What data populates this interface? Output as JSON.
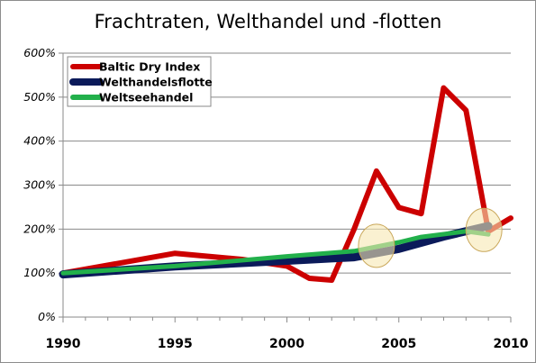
{
  "chart_data": {
    "type": "line",
    "title": "Frachtraten, Welthandel und -flotten",
    "xlabel": "",
    "ylabel": "",
    "xlim": [
      1990,
      2010
    ],
    "ylim": [
      0,
      600
    ],
    "x_ticks": [
      "1990",
      "1995",
      "2000",
      "2005",
      "2010"
    ],
    "x_tick_values": [
      1990,
      1995,
      2000,
      2005,
      2010
    ],
    "y_ticks": [
      "0%",
      "100%",
      "200%",
      "300%",
      "400%",
      "500%",
      "600%"
    ],
    "y_tick_values": [
      0,
      100,
      200,
      300,
      400,
      500,
      600
    ],
    "grid": "horizontal",
    "legend_position": "top-left",
    "series": [
      {
        "name": "Baltic Dry Index",
        "color": "#cc0000",
        "x": [
          1990,
          1995,
          1998,
          2000,
          2001,
          2002,
          2003,
          2004,
          2005,
          2006,
          2007,
          2008,
          2009,
          2010
        ],
        "values": [
          100,
          145,
          131,
          116,
          88,
          84,
          200,
          332,
          249,
          235,
          521,
          470,
          195,
          225
        ]
      },
      {
        "name": "Welthandelsflotte",
        "color": "#0b1a5a",
        "x": [
          1990,
          1995,
          2000,
          2003,
          2005,
          2007,
          2009
        ],
        "values": [
          97,
          115,
          128,
          136,
          155,
          183,
          207
        ]
      },
      {
        "name": "Weltseehandel",
        "color": "#22b04b",
        "x": [
          1990,
          1995,
          2000,
          2003,
          2005,
          2006,
          2008,
          2009
        ],
        "values": [
          100,
          116,
          138,
          150,
          170,
          182,
          195,
          188
        ]
      }
    ],
    "highlights": [
      {
        "x": 2004,
        "y": 162,
        "color": "#f6e7b2"
      },
      {
        "x": 2008.8,
        "y": 198,
        "color": "#f6e7b2"
      }
    ]
  }
}
